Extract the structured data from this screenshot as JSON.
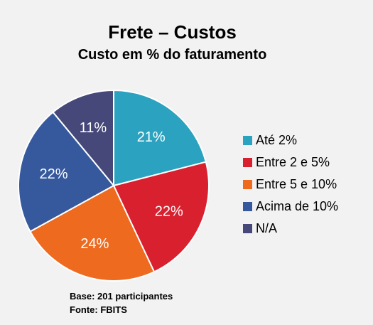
{
  "chart_data": {
    "type": "pie",
    "title": "Frete – Custos",
    "subtitle": "Custo em % do faturamento",
    "categories": [
      "Até 2%",
      "Entre 2 e 5%",
      "Entre 5 e 10%",
      "Acima de 10%",
      "N/A"
    ],
    "values": [
      21,
      22,
      24,
      22,
      11
    ],
    "labels": [
      "21%",
      "22%",
      "24%",
      "22%",
      "11%"
    ],
    "colors": [
      "#2ba3c0",
      "#d9202f",
      "#ee6a1f",
      "#36599d",
      "#454878"
    ],
    "legend_position": "right"
  },
  "footer": {
    "base": "Base: 201 participantes",
    "source": "Fonte: FBITS"
  }
}
